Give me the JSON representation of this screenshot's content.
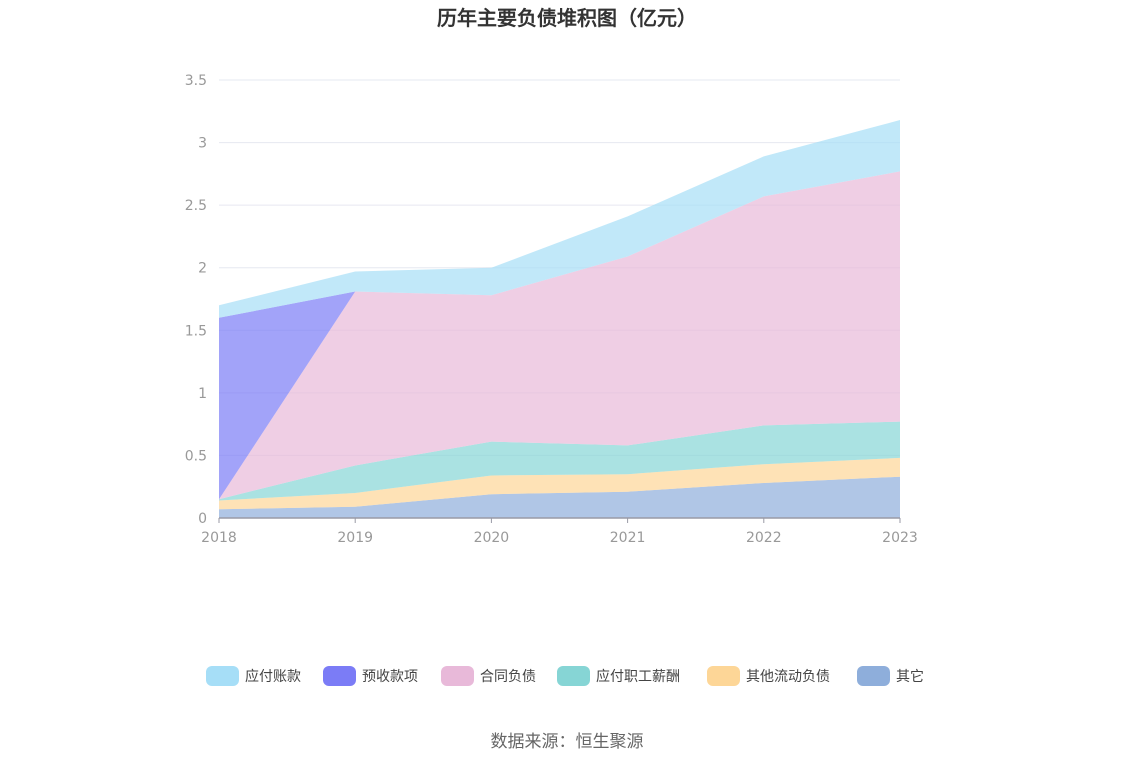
{
  "chart_data": {
    "type": "area",
    "stacked": true,
    "title": "历年主要负债堆积图（亿元）",
    "source": "数据来源：恒生聚源",
    "xlabel": "",
    "ylabel": "",
    "x": [
      "2018",
      "2019",
      "2020",
      "2021",
      "2022",
      "2023"
    ],
    "ylim": [
      0,
      3.5
    ],
    "yticks": [
      "0",
      "0.5",
      "1",
      "1.5",
      "2",
      "2.5",
      "3",
      "3.5"
    ],
    "grid": true,
    "legend_position": "bottom",
    "series": [
      {
        "name": "其它",
        "color": "#8eaedb",
        "values": [
          0.07,
          0.09,
          0.19,
          0.21,
          0.28,
          0.33
        ]
      },
      {
        "name": "其他流动负债",
        "color": "#fdd697",
        "values": [
          0.07,
          0.11,
          0.15,
          0.14,
          0.15,
          0.15
        ]
      },
      {
        "name": "应付职工薪酬",
        "color": "#86d5d5",
        "values": [
          0.01,
          0.22,
          0.27,
          0.23,
          0.31,
          0.29
        ]
      },
      {
        "name": "合同负债",
        "color": "#e8b9d9",
        "values": [
          0.0,
          1.39,
          1.17,
          1.51,
          1.83,
          2.0
        ]
      },
      {
        "name": "预收款项",
        "color": "#7b7cf6",
        "values": [
          1.45,
          0.0,
          0.0,
          0.0,
          0.0,
          0.0
        ]
      },
      {
        "name": "应付账款",
        "color": "#a6def7",
        "values": [
          0.1,
          0.16,
          0.22,
          0.32,
          0.32,
          0.41
        ]
      }
    ],
    "legend_order": [
      "应付账款",
      "预收款项",
      "合同负债",
      "应付职工薪酬",
      "其他流动负债",
      "其它"
    ]
  }
}
